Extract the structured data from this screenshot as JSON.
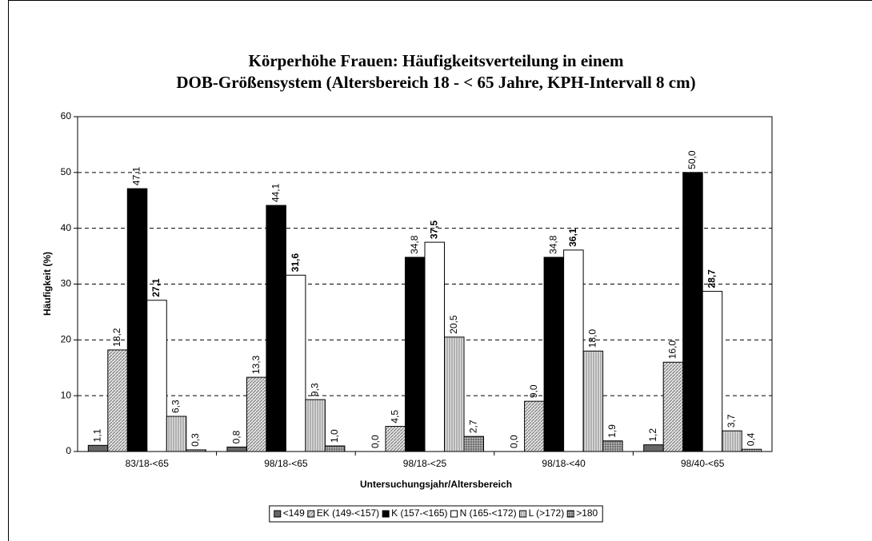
{
  "chart_data": {
    "type": "bar",
    "title": [
      "Körperhöhe Frauen: Häufigkeitsverteilung in einem",
      "DOB-Größensystem (Altersbereich 18 - < 65 Jahre, KPH-Intervall 8 cm)"
    ],
    "x_label": "Untersuchungsjahr/Altersbereich",
    "y_label": "Häufigkeit (%)",
    "categories": [
      "83/18-<65",
      "98/18-<65",
      "98/18-<25",
      "98/18-<40",
      "98/40-<65"
    ],
    "series": [
      {
        "name": "<149",
        "color": "#666666",
        "values": [
          1.1,
          0.8,
          0.0,
          0.0,
          1.2
        ],
        "value_labels": [
          "1,1",
          "0,8",
          "0,0",
          "0,0",
          "1,2"
        ]
      },
      {
        "name": "EK (149-<157)",
        "color": "#a0a0a0",
        "fill_pattern": "diagonal",
        "values": [
          18.2,
          13.3,
          4.5,
          9.0,
          16.0
        ],
        "value_labels": [
          "18,2",
          "13,3",
          "4,5",
          "9,0",
          "16,0"
        ]
      },
      {
        "name": "K (157-<165)",
        "color": "#000000",
        "values": [
          47.1,
          44.1,
          34.8,
          34.8,
          50.0
        ],
        "value_labels": [
          "47,1",
          "44,1",
          "34,8",
          "34,8",
          "50,0"
        ]
      },
      {
        "name": "N (165-<172)",
        "color": "#ffffff",
        "label_bold": true,
        "values": [
          27.1,
          31.6,
          37.5,
          36.1,
          28.7
        ],
        "value_labels": [
          "27,1",
          "31,6",
          "37,5",
          "36,1",
          "28,7"
        ]
      },
      {
        "name": "L (>172)",
        "color": "#909090",
        "fill_pattern": "vertical",
        "values": [
          6.3,
          9.3,
          20.5,
          18.0,
          3.7
        ],
        "value_labels": [
          "6,3",
          "9,3",
          "20,5",
          "18,0",
          "3,7"
        ]
      },
      {
        "name": ">180",
        "color": "#808080",
        "fill_pattern": "grid",
        "values": [
          0.3,
          1.0,
          2.7,
          1.9,
          0.4
        ],
        "value_labels": [
          "0,3",
          "1,0",
          "2,7",
          "1,9",
          "0,4"
        ]
      }
    ],
    "ylim": [
      0,
      60
    ],
    "yticks": [
      0,
      10,
      20,
      30,
      40,
      50,
      60
    ],
    "grid": true,
    "grid_style": "dashed",
    "legend": "bottom"
  }
}
